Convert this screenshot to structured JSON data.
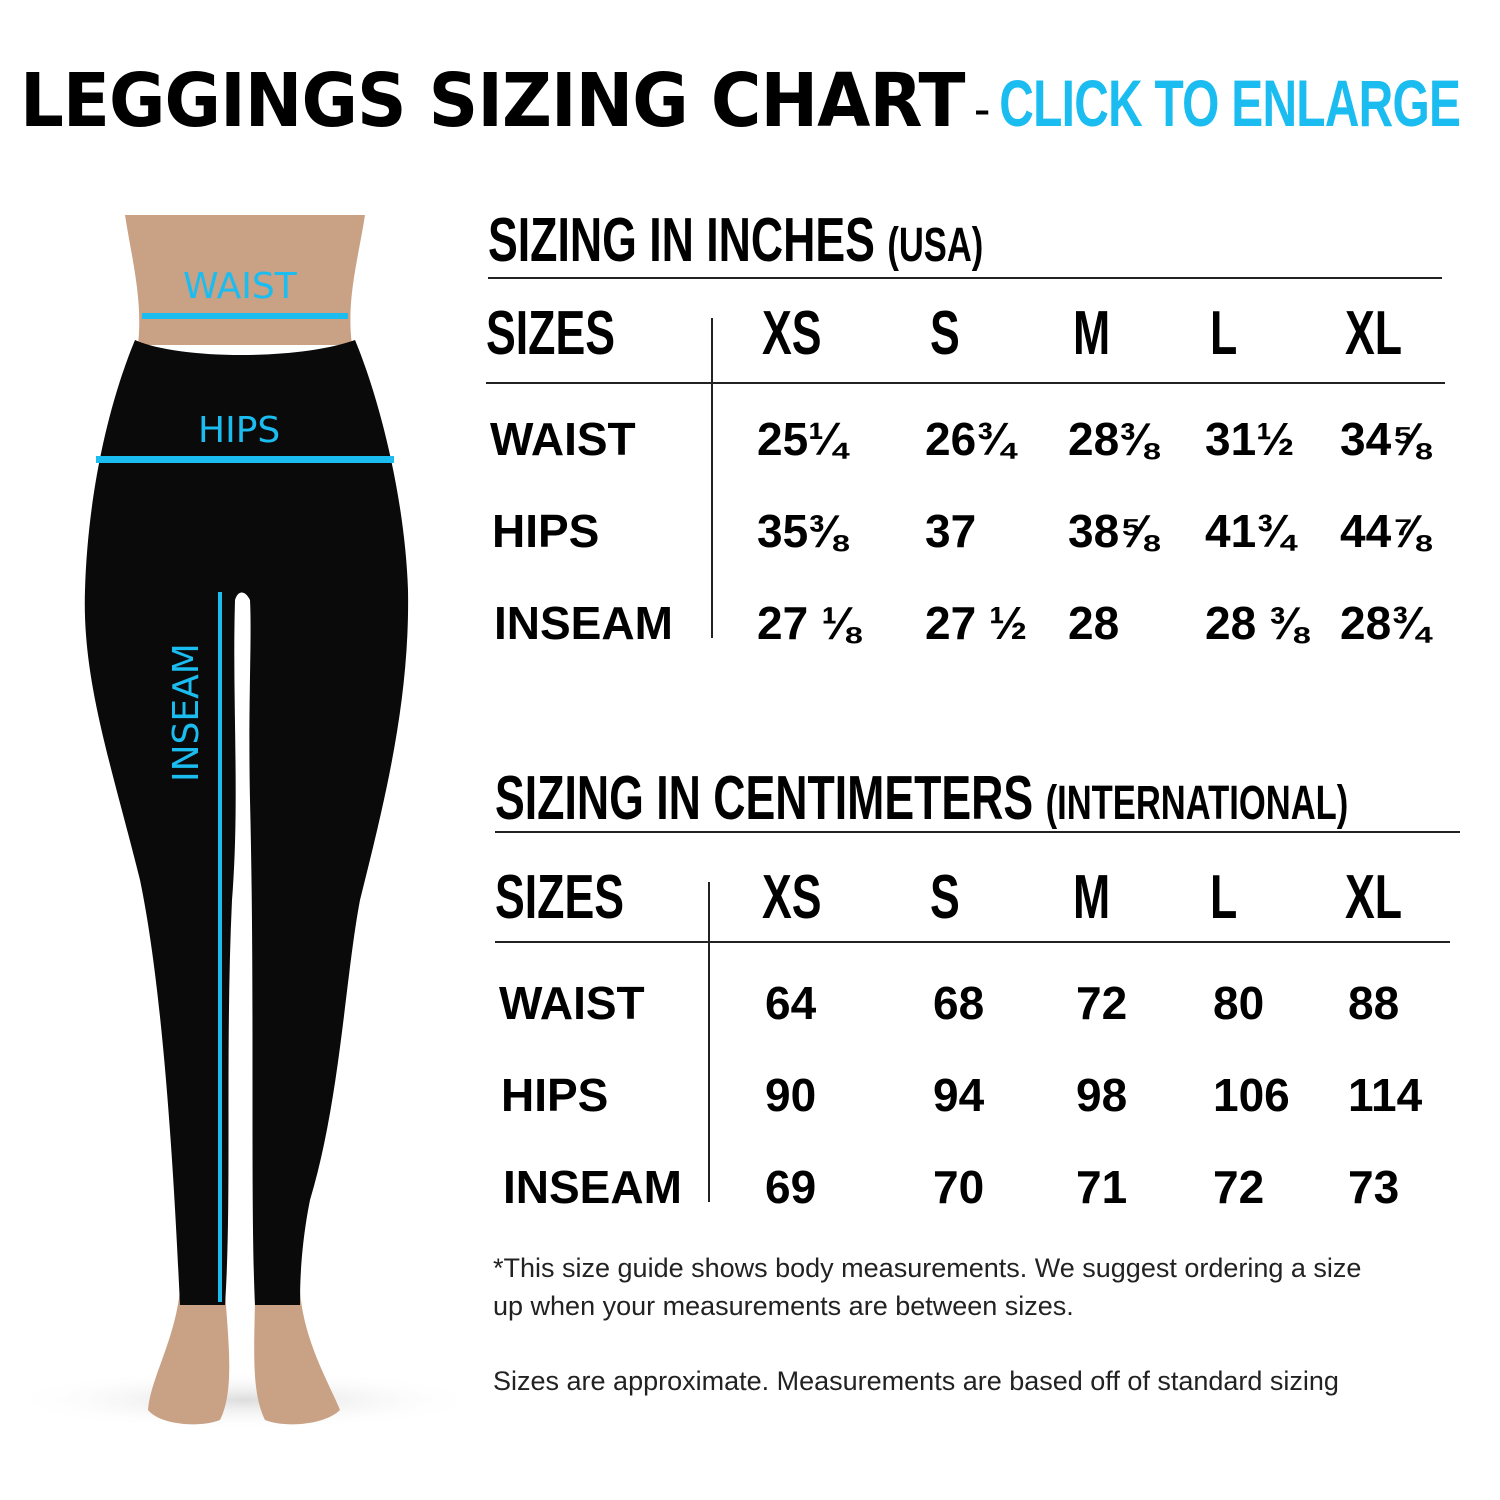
{
  "header": {
    "title": "LEGGINGS SIZING CHART",
    "separator": "-",
    "cta_link": "CLICK TO ENLARGE"
  },
  "colors": {
    "accent": "#1bbcf0",
    "leggings": "#0a0a0a",
    "skin": "#c9a184"
  },
  "figure": {
    "labels": {
      "waist": "WAIST",
      "hips": "HIPS",
      "inseam": "INSEAM"
    }
  },
  "inches": {
    "title": "SIZING IN INCHES",
    "subtitle": "(USA)",
    "columns": [
      "SIZES",
      "XS",
      "S",
      "M",
      "L",
      "XL"
    ],
    "rows": [
      {
        "label": "WAIST",
        "values": [
          "25¼",
          "26¾",
          "28⅜",
          "31½",
          "34⅝"
        ]
      },
      {
        "label": "HIPS",
        "values": [
          "35⅜",
          "37",
          "38⅝",
          "41¾",
          "44⅞"
        ]
      },
      {
        "label": "INSEAM",
        "values": [
          "27 ⅛",
          "27 ½",
          "28",
          "28 ⅜",
          "28¾"
        ]
      }
    ]
  },
  "centimeters": {
    "title": "SIZING IN CENTIMETERS",
    "subtitle": "(INTERNATIONAL)",
    "columns": [
      "SIZES",
      "XS",
      "S",
      "M",
      "L",
      "XL"
    ],
    "rows": [
      {
        "label": "WAIST",
        "values": [
          "64",
          "68",
          "72",
          "80",
          "88"
        ]
      },
      {
        "label": "HIPS",
        "values": [
          "90",
          "94",
          "98",
          "106",
          "114"
        ]
      },
      {
        "label": "INSEAM",
        "values": [
          "69",
          "70",
          "71",
          "72",
          "73"
        ]
      }
    ]
  },
  "notes": {
    "line1": "*This size guide shows body measurements. We suggest ordering a size",
    "line2": "up when your measurements are between sizes.",
    "line3": "Sizes are approximate. Measurements are based off of standard sizing"
  }
}
